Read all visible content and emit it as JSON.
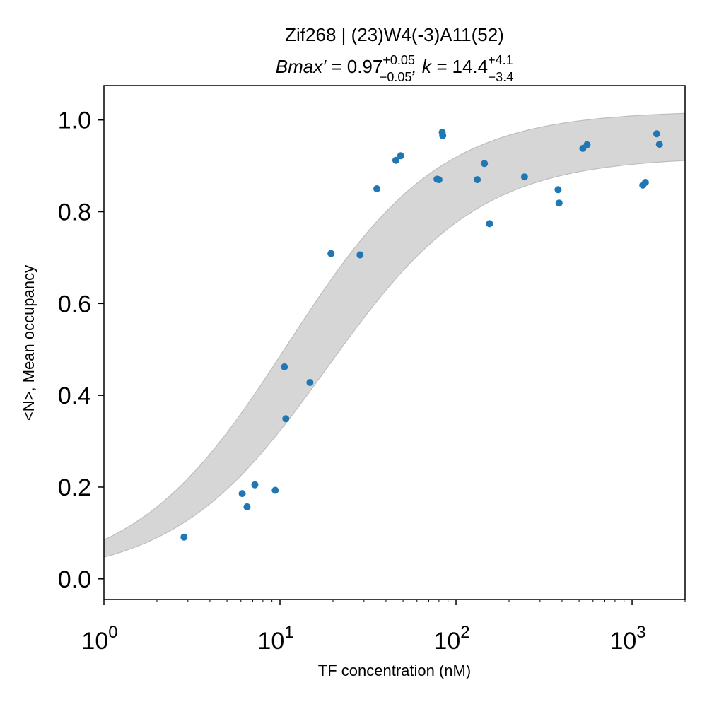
{
  "chart_data": {
    "type": "scatter",
    "title": "Zif268 | (23)W4(-3)A11(52)",
    "subtitle": {
      "bmax_label": "Bmax′ = ",
      "bmax_value": "0.97",
      "bmax_plus": "+0.05",
      "bmax_minus": "−0.05",
      "k_label": ", k = ",
      "k_value": "14.4",
      "k_plus": "+4.1",
      "k_minus": "−3.4"
    },
    "xlabel": "TF concentration (nM)",
    "ylabel": "<N>, Mean occupancy",
    "x_scale": "log",
    "xlim": [
      1,
      2000
    ],
    "ylim": [
      -0.045,
      1.075
    ],
    "x_ticks": [
      {
        "value": 1,
        "base": "10",
        "exp": "0"
      },
      {
        "value": 10,
        "base": "10",
        "exp": "1"
      },
      {
        "value": 100,
        "base": "10",
        "exp": "2"
      },
      {
        "value": 1000,
        "base": "10",
        "exp": "3"
      }
    ],
    "y_ticks": [
      {
        "value": 0.0,
        "label": "0.0"
      },
      {
        "value": 0.2,
        "label": "0.2"
      },
      {
        "value": 0.4,
        "label": "0.4"
      },
      {
        "value": 0.6,
        "label": "0.6"
      },
      {
        "value": 0.8,
        "label": "0.8"
      },
      {
        "value": 1.0,
        "label": "1.0"
      }
    ],
    "grid": false,
    "colors": {
      "points": "#1f77b4",
      "band_fill": "#d6d6d6",
      "band_edge": "#bdbdbd"
    },
    "fit_band": {
      "bmax_low": 0.92,
      "bmax_high": 1.02,
      "k_low": 11.0,
      "k_high": 18.5
    },
    "series": [
      {
        "x": [
          2.85,
          6.1,
          6.5,
          7.2,
          9.4,
          10.6,
          10.8,
          14.8,
          19.5,
          28.5,
          35.5,
          45.5,
          48.5,
          78,
          80,
          83.5,
          84,
          132,
          145,
          155,
          245,
          380,
          385,
          525,
          555,
          1150,
          1190,
          1380,
          1430
        ],
        "y": [
          0.091,
          0.186,
          0.157,
          0.205,
          0.193,
          0.462,
          0.349,
          0.428,
          0.709,
          0.706,
          0.85,
          0.912,
          0.922,
          0.871,
          0.87,
          0.973,
          0.966,
          0.87,
          0.905,
          0.774,
          0.876,
          0.848,
          0.819,
          0.938,
          0.946,
          0.858,
          0.864,
          0.97,
          0.947
        ]
      }
    ]
  }
}
